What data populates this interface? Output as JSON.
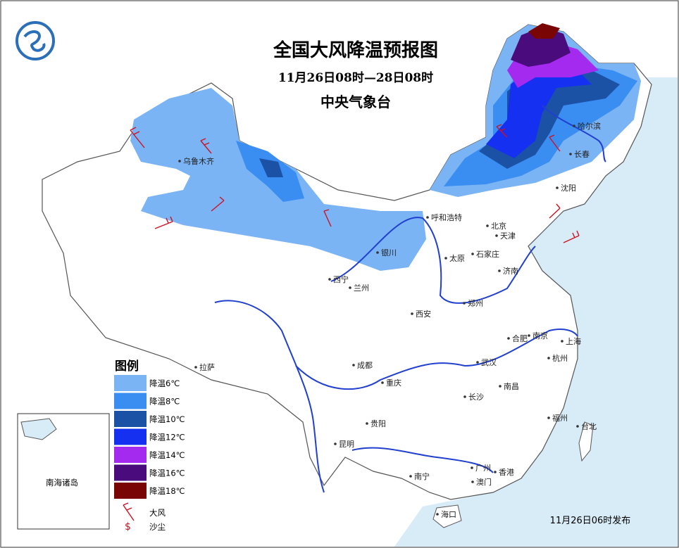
{
  "header": {
    "title": "全国大风降温预报图",
    "period": "11月26日08时—28日08时",
    "issuer": "中央气象台"
  },
  "legend": {
    "title": "图例",
    "items": [
      {
        "label": "降温6℃",
        "color": "#7ab4f5"
      },
      {
        "label": "降温8℃",
        "color": "#3a8ef2"
      },
      {
        "label": "降温10℃",
        "color": "#1c52a6"
      },
      {
        "label": "降温12℃",
        "color": "#1530f0"
      },
      {
        "label": "降温14℃",
        "color": "#a52af0"
      },
      {
        "label": "降温16℃",
        "color": "#4a0c7c"
      },
      {
        "label": "降温18℃",
        "color": "#7a0505"
      }
    ],
    "wind": "大风",
    "dust_symbol": "$",
    "dust": "沙尘"
  },
  "inset": {
    "label": "南海诸岛"
  },
  "cities": [
    "乌鲁木齐",
    "哈尔滨",
    "长春",
    "沈阳",
    "呼和浩特",
    "北京",
    "天津",
    "石家庄",
    "太原",
    "济南",
    "银川",
    "西宁",
    "兰州",
    "西安",
    "郑州",
    "合肥",
    "南京",
    "上海",
    "杭州",
    "拉萨",
    "成都",
    "重庆",
    "武汉",
    "南昌",
    "长沙",
    "福州",
    "台北",
    "贵阳",
    "昆明",
    "南宁",
    "广州",
    "香港",
    "澳门",
    "海口"
  ],
  "footer": "11月26日06时发布"
}
